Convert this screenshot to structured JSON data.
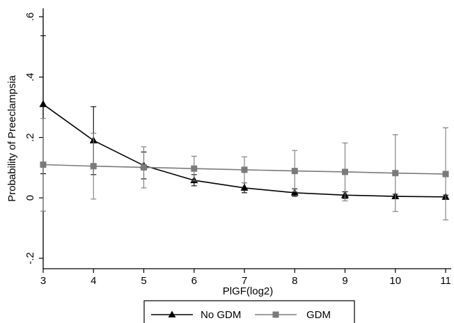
{
  "chart_data": {
    "type": "line",
    "xlabel": "PlGF(log2)",
    "ylabel": "Probability of Preeclampsia",
    "x": [
      3,
      4,
      5,
      6,
      7,
      8,
      9,
      10,
      11
    ],
    "xlim": [
      3,
      11
    ],
    "ylim": [
      -0.2,
      0.6
    ],
    "x_ticks": [
      3,
      4,
      5,
      6,
      7,
      8,
      9,
      10,
      11
    ],
    "y_ticks": [
      -0.2,
      0,
      0.2,
      0.4,
      0.6
    ],
    "y_tick_labels": [
      "-.2",
      "0",
      ".2",
      ".4",
      ".6"
    ],
    "grid": false,
    "legend_position": "bottom",
    "series": [
      {
        "name": "No GDM",
        "marker": "triangle",
        "color": "#000000",
        "values": [
          0.31,
          0.19,
          0.107,
          0.058,
          0.033,
          0.017,
          0.009,
          0.005,
          0.003
        ],
        "lower": [
          0.08,
          0.077,
          0.063,
          0.04,
          0.017,
          0.005,
          -0.002,
          -0.002,
          -0.003
        ],
        "upper": [
          0.537,
          0.302,
          0.152,
          0.077,
          0.05,
          0.03,
          0.02,
          0.012,
          0.009
        ]
      },
      {
        "name": "GDM",
        "marker": "square",
        "color": "#7a7a7a",
        "values": [
          0.11,
          0.105,
          0.101,
          0.097,
          0.093,
          0.089,
          0.086,
          0.082,
          0.079
        ],
        "lower": [
          -0.044,
          -0.004,
          0.033,
          0.056,
          0.05,
          0.021,
          -0.01,
          -0.045,
          -0.073
        ],
        "upper": [
          0.263,
          0.214,
          0.169,
          0.138,
          0.136,
          0.157,
          0.182,
          0.209,
          0.232
        ]
      }
    ]
  }
}
